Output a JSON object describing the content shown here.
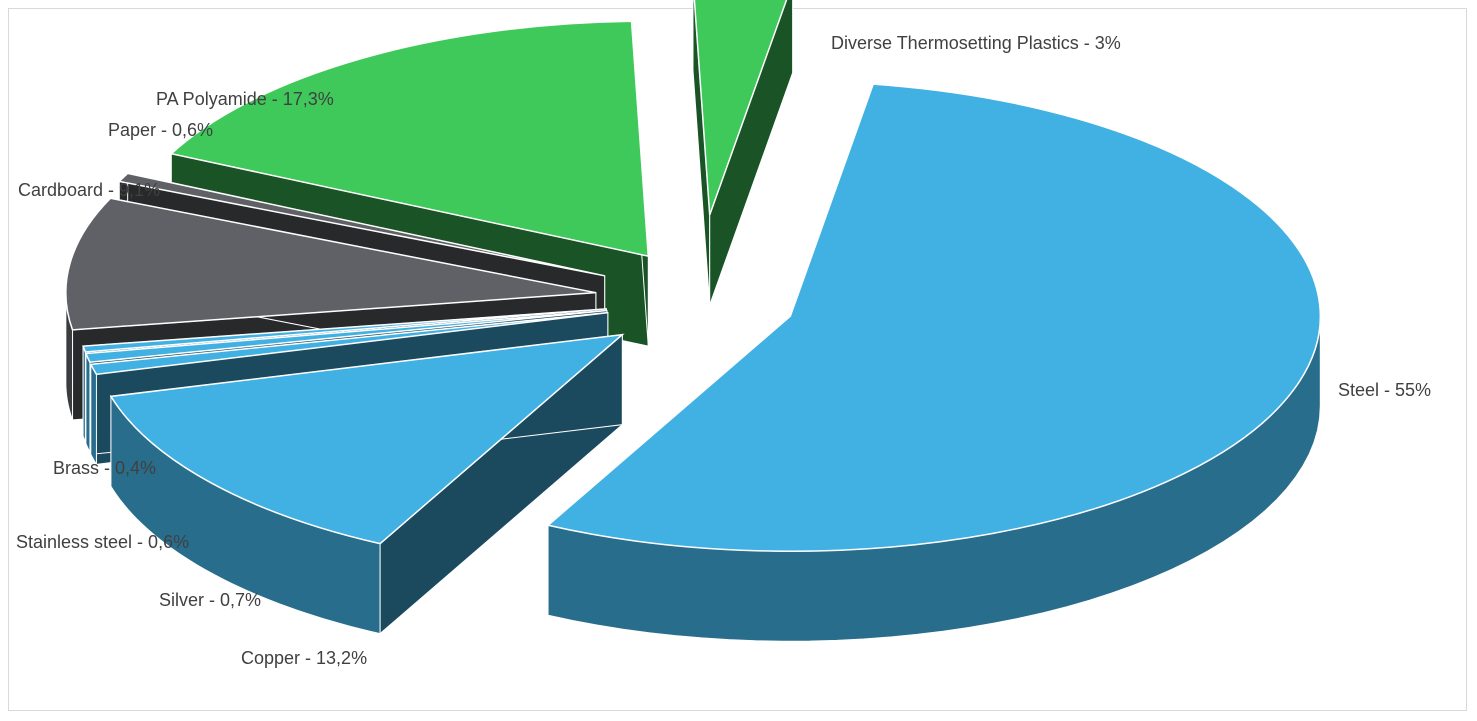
{
  "chart_data": {
    "type": "pie",
    "variant": "3d-exploded",
    "title": "",
    "legend": "none",
    "slices": [
      {
        "label": "Steel - 55%",
        "name": "Steel",
        "value": 55,
        "color": "#41b0e2"
      },
      {
        "label": "Copper - 13,2%",
        "name": "Copper",
        "value": 13.2,
        "color": "#41b0e2"
      },
      {
        "label": "Silver - 0,7%",
        "name": "Silver",
        "value": 0.7,
        "color": "#41b0e2"
      },
      {
        "label": "Stainless steel - 0,6%",
        "name": "Stainless steel",
        "value": 0.6,
        "color": "#41b0e2"
      },
      {
        "label": "Brass - 0,4%",
        "name": "Brass",
        "value": 0.4,
        "color": "#41b0e2"
      },
      {
        "label": "Cardboard - 9,1%",
        "name": "Cardboard",
        "value": 9.1,
        "color": "#5f6166"
      },
      {
        "label": "Paper - 0,6%",
        "name": "Paper",
        "value": 0.6,
        "color": "#5f6166"
      },
      {
        "label": "PA Polyamide - 17,3%",
        "name": "PA Polyamide",
        "value": 17.3,
        "color": "#3ec95a"
      },
      {
        "label": "Diverse Thermosetting Plastics - 3%",
        "name": "Diverse Thermosetting Plastics",
        "value": 3,
        "color": "#3ec95a"
      }
    ]
  }
}
